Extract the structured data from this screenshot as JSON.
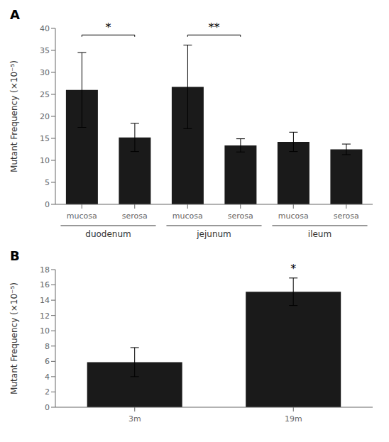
{
  "chart_data": [
    {
      "type": "bar",
      "title": "A",
      "categories": [
        "mucosa",
        "serosa",
        "mucosa",
        "serosa",
        "mucosa",
        "serosa"
      ],
      "groups": [
        "duodenum",
        "jejunum",
        "ileum"
      ],
      "values": [
        26.0,
        15.2,
        26.7,
        13.4,
        14.2,
        12.5
      ],
      "errors": [
        8.5,
        3.2,
        9.5,
        1.5,
        2.2,
        1.2
      ],
      "ylim": [
        0,
        40
      ],
      "yticks": [
        0,
        5,
        10,
        15,
        20,
        25,
        30,
        35,
        40
      ],
      "ylabel": "Mutant Frequency (×10⁻⁵)",
      "color": "#1a1a1a",
      "grid": false,
      "annotations": [
        {
          "text": "*",
          "from": 0,
          "to": 1,
          "y": 38.5
        },
        {
          "text": "**",
          "from": 2,
          "to": 3,
          "y": 38.5
        }
      ]
    },
    {
      "type": "bar",
      "title": "B",
      "categories": [
        "3m",
        "19m"
      ],
      "values": [
        5.9,
        15.1
      ],
      "errors": [
        1.9,
        1.8
      ],
      "ylim": [
        0,
        18
      ],
      "yticks": [
        0,
        2,
        4,
        6,
        8,
        10,
        12,
        14,
        16,
        18
      ],
      "ylabel": "Mutant Frequency (×10⁻⁵)",
      "color": "#1a1a1a",
      "grid": false,
      "annotations": [
        {
          "text": "*",
          "at": 1,
          "y": 17.2
        }
      ]
    }
  ]
}
